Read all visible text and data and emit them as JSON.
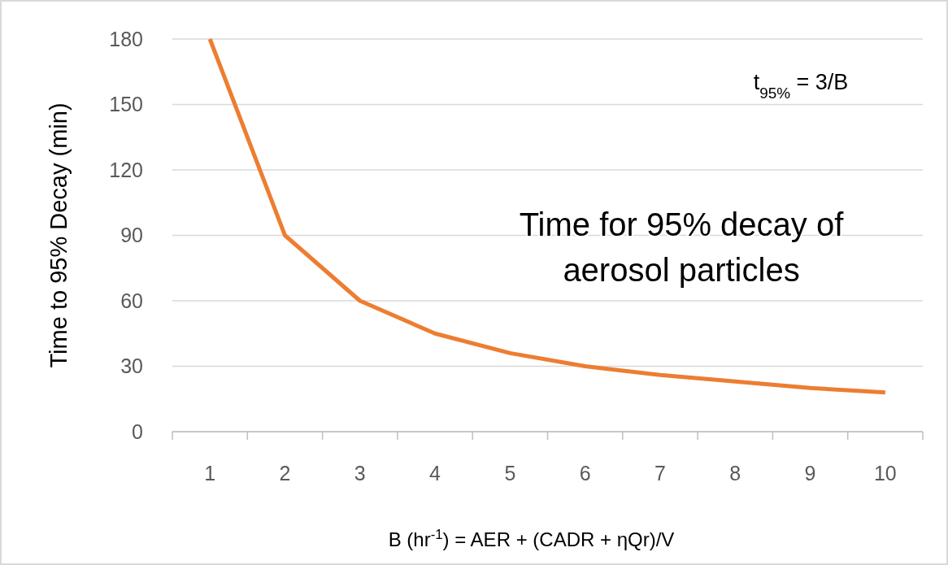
{
  "chart_data": {
    "type": "line",
    "xlabel": "B (hr$^{-1}$) = AER + (CADR + ηQr)/V",
    "ylabel": "Time to 95% Decay (min)",
    "categories": [
      "1",
      "2",
      "3",
      "4",
      "5",
      "6",
      "7",
      "8",
      "9",
      "10"
    ],
    "series": [
      {
        "color": "#ed7d31",
        "values": [
          180,
          90,
          60,
          45,
          36,
          30,
          26,
          23,
          20,
          18
        ]
      }
    ],
    "ylim": [
      0,
      180
    ],
    "yticks": [
      0,
      30,
      60,
      90,
      120,
      150,
      180
    ],
    "grid": "y",
    "marker": "none",
    "line_style": "solid",
    "annotations": [
      "t$_{95%}$ = 3/B",
      "Time for 95% decay of aerosol particles"
    ]
  }
}
